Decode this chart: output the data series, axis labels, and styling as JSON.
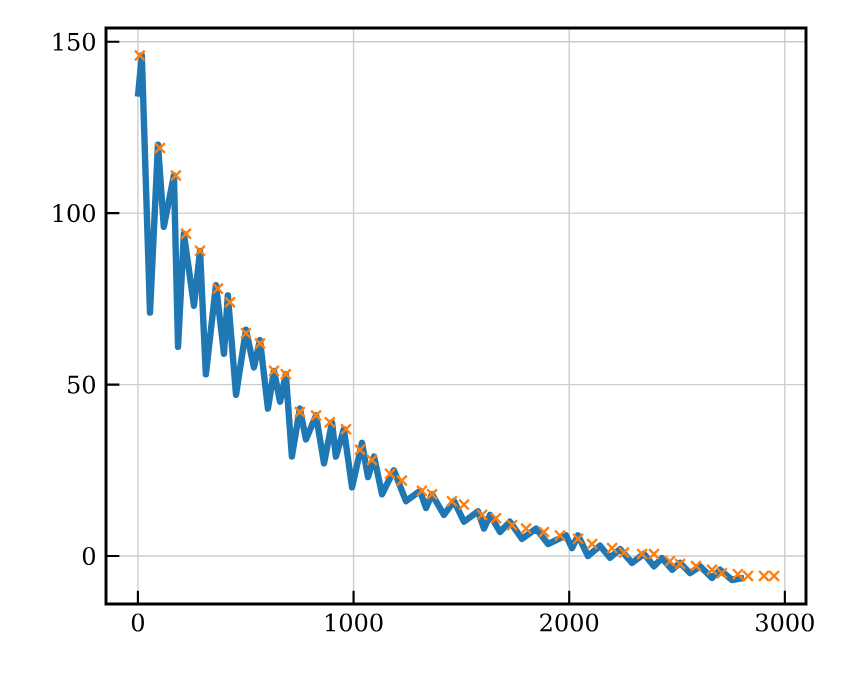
{
  "chart_data": {
    "type": "line",
    "xlim": [
      -148,
      3098
    ],
    "ylim": [
      -14,
      154
    ],
    "xticks": [
      0,
      1000,
      2000,
      3000
    ],
    "yticks": [
      0,
      50,
      100,
      150
    ],
    "grid": true,
    "series": [
      {
        "color": "#1f77b4",
        "x": [
          0,
          18,
          56,
          93,
          120,
          167,
          186,
          213,
          260,
          288,
          315,
          362,
          399,
          417,
          455,
          501,
          538,
          566,
          603,
          631,
          659,
          686,
          714,
          751,
          779,
          826,
          863,
          900,
          918,
          955,
          993,
          1039,
          1067,
          1095,
          1132,
          1187,
          1243,
          1308,
          1336,
          1364,
          1419,
          1466,
          1512,
          1577,
          1605,
          1633,
          1679,
          1725,
          1781,
          1846,
          1902,
          1985,
          2013,
          2041,
          2087,
          2143,
          2189,
          2236,
          2291,
          2347,
          2393,
          2430,
          2477,
          2514,
          2560,
          2607,
          2662,
          2699,
          2755,
          2811
        ],
        "values": [
          134,
          146,
          71,
          120,
          96,
          111,
          61,
          94,
          73,
          89,
          53,
          79,
          59,
          76,
          47,
          66,
          55,
          63,
          43,
          54,
          45,
          53,
          29,
          43,
          34,
          41,
          27,
          39,
          29,
          37,
          20,
          33,
          23,
          29,
          18,
          25,
          16,
          19,
          14,
          18,
          12,
          16,
          10,
          13,
          8,
          12,
          7,
          10,
          5,
          8,
          3.5,
          6,
          2.3,
          6,
          0,
          3,
          -0.5,
          2,
          -2,
          0.6,
          -3,
          -0.6,
          -4,
          -2,
          -5,
          -3,
          -6.4,
          -4,
          -7,
          -6.4
        ]
      },
      {
        "type": "scatter",
        "marker": "cross",
        "color": "#ff7f0e",
        "x": [
          9,
          102,
          176,
          223,
          288,
          371,
          427,
          501,
          566,
          631,
          686,
          751,
          826,
          890,
          965,
          1030,
          1085,
          1169,
          1224,
          1317,
          1364,
          1456,
          1512,
          1596,
          1660,
          1735,
          1800,
          1883,
          1957,
          2041,
          2106,
          2199,
          2254,
          2338,
          2393,
          2467,
          2514,
          2588,
          2662,
          2708,
          2782,
          2829,
          2903,
          2950
        ],
        "values": [
          146,
          119,
          111,
          94,
          89,
          78,
          74,
          65,
          62,
          54,
          53,
          42,
          41,
          39,
          37,
          31,
          28,
          24,
          22,
          19,
          18,
          16,
          15,
          12,
          11,
          9,
          8,
          7,
          6,
          5,
          3.5,
          2.3,
          1,
          0.6,
          0.6,
          -1.5,
          -2.3,
          -2.9,
          -4,
          -5,
          -5.3,
          -5.8,
          -5.8,
          -5.8
        ]
      }
    ]
  }
}
